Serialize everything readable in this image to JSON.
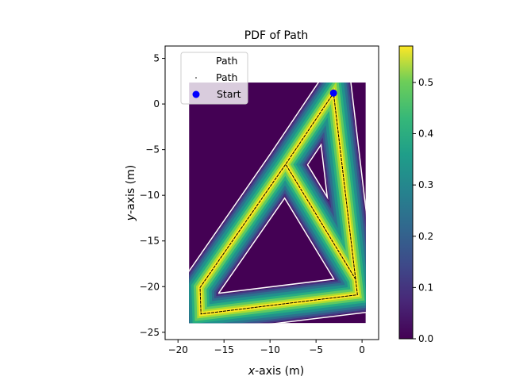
{
  "chart_data": {
    "type": "heatmap",
    "title": "PDF of Path",
    "xlabel_var": "x",
    "xlabel_rest": "-axis (m)",
    "ylabel_var": "y",
    "ylabel_rest": "-axis (m)",
    "xlim": [
      -21.4,
      1.8
    ],
    "ylim": [
      -25.8,
      6.35
    ],
    "xticks": [
      -20,
      -15,
      -10,
      -5,
      0
    ],
    "xtick_labels": [
      "−20",
      "−15",
      "−10",
      "−5",
      "0"
    ],
    "yticks": [
      5,
      0,
      -5,
      -10,
      -15,
      -20,
      -25
    ],
    "ytick_labels": [
      "5",
      "0",
      "−5",
      "−10",
      "−15",
      "−20",
      "−25"
    ],
    "image_extent": [
      -18.8,
      0.4,
      -24.0,
      2.35
    ],
    "path": [
      [
        -0.7,
        -19.2
      ],
      [
        -3.1,
        1.2
      ],
      [
        -8.3,
        -6.6
      ],
      [
        -17.6,
        -20.1
      ],
      [
        -17.5,
        -23.0
      ],
      [
        -0.5,
        -20.9
      ],
      [
        -0.7,
        -19.2
      ],
      [
        -8.3,
        -6.6
      ]
    ],
    "start": [
      -3.1,
      1.2
    ],
    "colorbar": {
      "range": [
        0,
        0.571
      ],
      "ticks": [
        0.0,
        0.1,
        0.2,
        0.3,
        0.4,
        0.5
      ],
      "tick_labels": [
        "0.0",
        "0.1",
        "0.2",
        "0.3",
        "0.4",
        "0.5"
      ],
      "colormap": "viridis"
    },
    "legend": {
      "placement": "upper-left",
      "entries": [
        "Path",
        "Path",
        "Start"
      ]
    },
    "colors": {
      "start": "#0000ff",
      "path": "#000000",
      "contour": "#ffffff",
      "background": "#440154"
    }
  }
}
